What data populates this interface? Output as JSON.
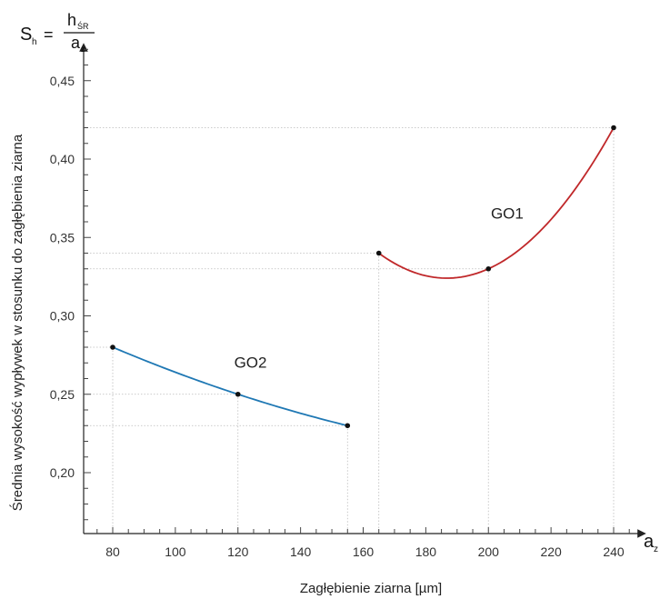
{
  "chart_data": {
    "type": "line",
    "formula": {
      "lhs_main": "S",
      "lhs_sub": "h",
      "equals": "=",
      "numerator_main": "h",
      "numerator_sub": "ŚR",
      "denominator_main": "a",
      "denominator_sub": "z"
    },
    "x_axis_symbol": {
      "main": "a",
      "sub": "z"
    },
    "xlabel": "Zagłębienie ziarna [µm]",
    "ylabel": "Średnia wysokość wypływek w stosunku do zagłębienia ziarna",
    "xlim": [
      70,
      250
    ],
    "ylim": [
      0.16,
      0.48
    ],
    "x_ticks": [
      {
        "value": 80,
        "label": "80"
      },
      {
        "value": 100,
        "label": "100"
      },
      {
        "value": 120,
        "label": "120"
      },
      {
        "value": 140,
        "label": "140"
      },
      {
        "value": 160,
        "label": "160"
      },
      {
        "value": 180,
        "label": "180"
      },
      {
        "value": 200,
        "label": "200"
      },
      {
        "value": 220,
        "label": "220"
      },
      {
        "value": 240,
        "label": "240"
      }
    ],
    "y_ticks": [
      {
        "value": 0.2,
        "label": "0,20"
      },
      {
        "value": 0.25,
        "label": "0,25"
      },
      {
        "value": 0.3,
        "label": "0,30"
      },
      {
        "value": 0.35,
        "label": "0,35"
      },
      {
        "value": 0.4,
        "label": "0,40"
      },
      {
        "value": 0.45,
        "label": "0,45"
      }
    ],
    "series": [
      {
        "name": "GO2",
        "color": "#1f78b4",
        "points": [
          [
            80,
            0.28
          ],
          [
            120,
            0.25
          ],
          [
            155,
            0.23
          ]
        ],
        "label_position": [
          124,
          0.267
        ]
      },
      {
        "name": "GO1",
        "color": "#c0282a",
        "points": [
          [
            165,
            0.34
          ],
          [
            200,
            0.33
          ],
          [
            240,
            0.42
          ]
        ],
        "label_position": [
          206,
          0.362
        ]
      }
    ],
    "grid": "dotted guide lines from data points to axes",
    "legend": "none"
  }
}
